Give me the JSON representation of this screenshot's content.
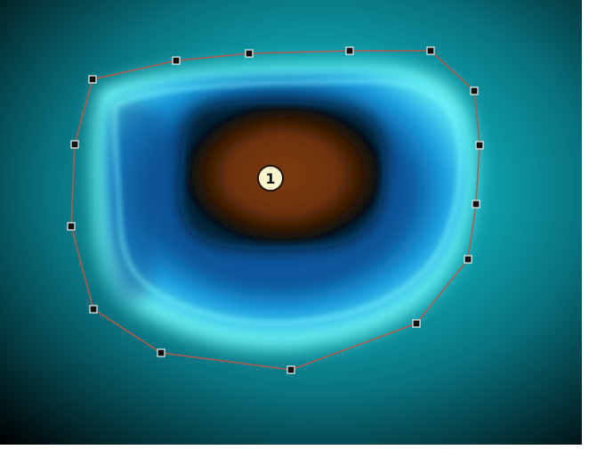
{
  "view": {
    "background_color": "#000000",
    "region_outline_color": "#b05a4d",
    "handle_fill": "#111111",
    "handle_stroke": "#f2f2f2"
  },
  "region": {
    "label": "1",
    "label_fill": "#fff7cf",
    "label_stroke": "#1a1200"
  },
  "palette": {
    "outer_dark": "#000000",
    "cyan_glow": "#7ef3f5",
    "teal": "#18b8bd",
    "blue": "#1a73c7",
    "deep_blue": "#0b3a69",
    "brown_core": "#7a3a0d",
    "brown_edge": "#2d1703"
  }
}
